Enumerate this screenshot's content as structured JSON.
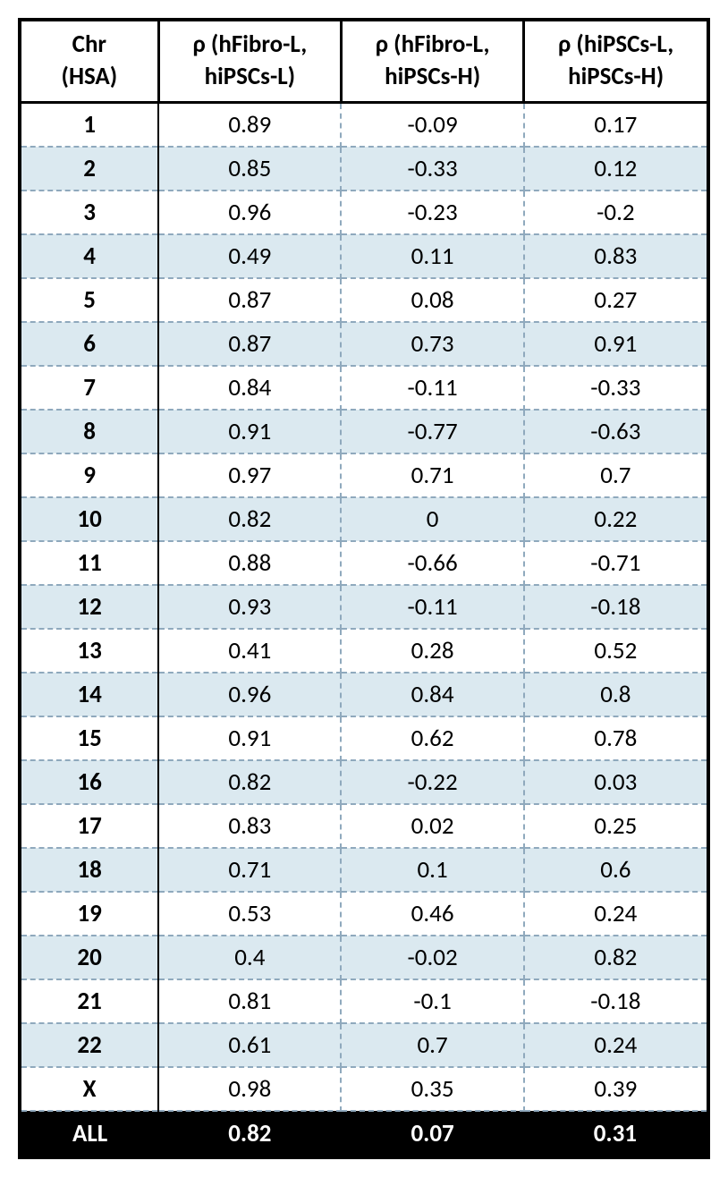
{
  "table": {
    "type": "table",
    "background_color": "#ffffff",
    "alt_row_color": "#dbe9f0",
    "header_bg": "#ffffff",
    "header_fg": "#000000",
    "footer_bg": "#000000",
    "footer_fg": "#ffffff",
    "border_color": "#000000",
    "dash_color": "#8fa9bd",
    "font_family": "Calibri",
    "header_fontsize": 27,
    "body_fontsize": 27,
    "columns": [
      {
        "line1": "Chr",
        "line2": "(HSA)"
      },
      {
        "line1": "ρ (hFibro-L,",
        "line2": "hiPSCs-L)"
      },
      {
        "line1": "ρ (hFibro-L,",
        "line2": "hiPSCs-H)"
      },
      {
        "line1": "ρ (hiPSCs-L,",
        "line2": "hiPSCs-H)"
      }
    ],
    "rows": [
      {
        "chr": "1",
        "c1": "0.89",
        "c2": "-0.09",
        "c3": "0.17"
      },
      {
        "chr": "2",
        "c1": "0.85",
        "c2": "-0.33",
        "c3": "0.12"
      },
      {
        "chr": "3",
        "c1": "0.96",
        "c2": "-0.23",
        "c3": "-0.2"
      },
      {
        "chr": "4",
        "c1": "0.49",
        "c2": "0.11",
        "c3": "0.83"
      },
      {
        "chr": "5",
        "c1": "0.87",
        "c2": "0.08",
        "c3": "0.27"
      },
      {
        "chr": "6",
        "c1": "0.87",
        "c2": "0.73",
        "c3": "0.91"
      },
      {
        "chr": "7",
        "c1": "0.84",
        "c2": "-0.11",
        "c3": "-0.33"
      },
      {
        "chr": "8",
        "c1": "0.91",
        "c2": "-0.77",
        "c3": "-0.63"
      },
      {
        "chr": "9",
        "c1": "0.97",
        "c2": "0.71",
        "c3": "0.7"
      },
      {
        "chr": "10",
        "c1": "0.82",
        "c2": "0",
        "c3": "0.22"
      },
      {
        "chr": "11",
        "c1": "0.88",
        "c2": "-0.66",
        "c3": "-0.71"
      },
      {
        "chr": "12",
        "c1": "0.93",
        "c2": "-0.11",
        "c3": "-0.18"
      },
      {
        "chr": "13",
        "c1": "0.41",
        "c2": "0.28",
        "c3": "0.52"
      },
      {
        "chr": "14",
        "c1": "0.96",
        "c2": "0.84",
        "c3": "0.8"
      },
      {
        "chr": "15",
        "c1": "0.91",
        "c2": "0.62",
        "c3": "0.78"
      },
      {
        "chr": "16",
        "c1": "0.82",
        "c2": "-0.22",
        "c3": "0.03"
      },
      {
        "chr": "17",
        "c1": "0.83",
        "c2": "0.02",
        "c3": "0.25"
      },
      {
        "chr": "18",
        "c1": "0.71",
        "c2": "0.1",
        "c3": "0.6"
      },
      {
        "chr": "19",
        "c1": "0.53",
        "c2": "0.46",
        "c3": "0.24"
      },
      {
        "chr": "20",
        "c1": "0.4",
        "c2": "-0.02",
        "c3": "0.82"
      },
      {
        "chr": "21",
        "c1": "0.81",
        "c2": "-0.1",
        "c3": "-0.18"
      },
      {
        "chr": "22",
        "c1": "0.61",
        "c2": "0.7",
        "c3": "0.24"
      },
      {
        "chr": "X",
        "c1": "0.98",
        "c2": "0.35",
        "c3": "0.39"
      }
    ],
    "footer": {
      "chr": "ALL",
      "c1": "0.82",
      "c2": "0.07",
      "c3": "0.31"
    }
  }
}
